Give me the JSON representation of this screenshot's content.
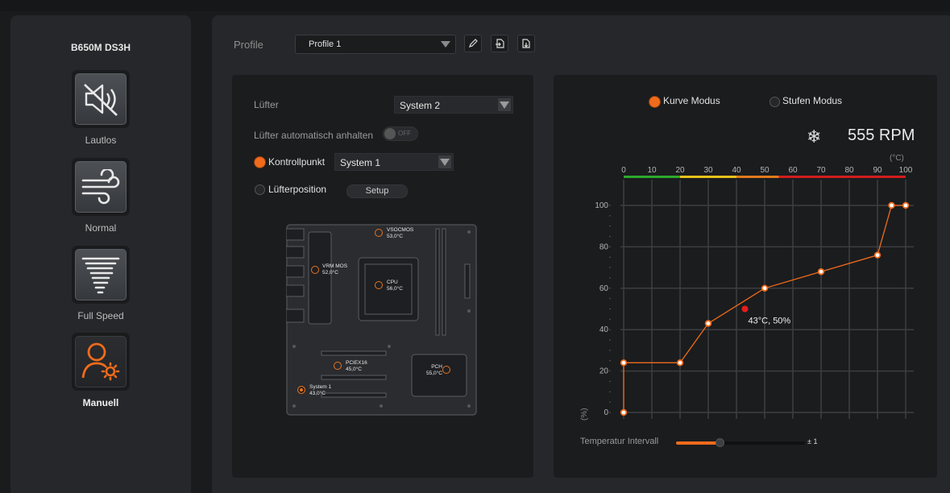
{
  "sidebar": {
    "board_name": "B650M DS3H",
    "modes": [
      {
        "label": "Lautlos",
        "icon": "speaker-muted-icon",
        "active": false
      },
      {
        "label": "Normal",
        "icon": "wind-icon",
        "active": false
      },
      {
        "label": "Full Speed",
        "icon": "tornado-icon",
        "active": false
      },
      {
        "label": "Manuell",
        "icon": "user-settings-icon",
        "active": true
      }
    ]
  },
  "profile": {
    "label": "Profile",
    "selected": "Profile 1",
    "buttons": [
      "edit-icon",
      "export-icon",
      "import-icon"
    ]
  },
  "fan_settings": {
    "fan_label": "Lüfter",
    "fan_selected": "System 2",
    "auto_stop_label": "Lüfter automatisch anhalten",
    "auto_stop_state": "OFF",
    "control_point_label": "Kontrollpunkt",
    "control_point_selected": "System 1",
    "fan_position_label": "Lüfterposition",
    "setup_label": "Setup"
  },
  "sensors": [
    {
      "name": "VSOCMOS",
      "value": "53,0°C",
      "active": false
    },
    {
      "name": "VRM MOS",
      "value": "52,0°C",
      "active": false
    },
    {
      "name": "CPU",
      "value": "56,0°C",
      "active": false
    },
    {
      "name": "PCIEX16",
      "value": "45,0°C",
      "active": false
    },
    {
      "name": "PCH",
      "value": "55,0°C",
      "active": false
    },
    {
      "name": "System 1",
      "value": "43,0°C",
      "active": true
    }
  ],
  "curve": {
    "mode_curve_label": "Kurve Modus",
    "mode_step_label": "Stufen Modus",
    "active_mode": "curve",
    "rpm": "555 RPM",
    "temp_unit": "(°C)",
    "pct_unit": "(%)",
    "current_point_label": "43°C, 50%",
    "temp_interval_label": "Temperatur Intervall",
    "temp_interval_value": "± 1",
    "temp_interval_fraction": 0.34
  },
  "chart_data": {
    "type": "line",
    "x_ticks": [
      0,
      10,
      20,
      30,
      40,
      50,
      60,
      70,
      80,
      90,
      100
    ],
    "y_ticks": [
      0,
      20,
      40,
      60,
      80,
      100
    ],
    "xlim": [
      0,
      100
    ],
    "ylim": [
      0,
      100
    ],
    "grid": true,
    "series": [
      {
        "x": [
          0,
          0,
          20,
          30,
          50,
          70,
          90,
          95,
          100
        ],
        "y": [
          0,
          24,
          24,
          43,
          60,
          68,
          76,
          100,
          100
        ]
      }
    ],
    "current_point": {
      "x": 43,
      "y": 50
    },
    "temp_colorbar": [
      {
        "from": 0,
        "to": 20,
        "color": "#2ea82e"
      },
      {
        "from": 20,
        "to": 40,
        "color": "#e6c21a"
      },
      {
        "from": 40,
        "to": 55,
        "color": "#e07a1c"
      },
      {
        "from": 55,
        "to": 100,
        "color": "#d21d1d"
      }
    ],
    "accent": "#f06b1c"
  }
}
